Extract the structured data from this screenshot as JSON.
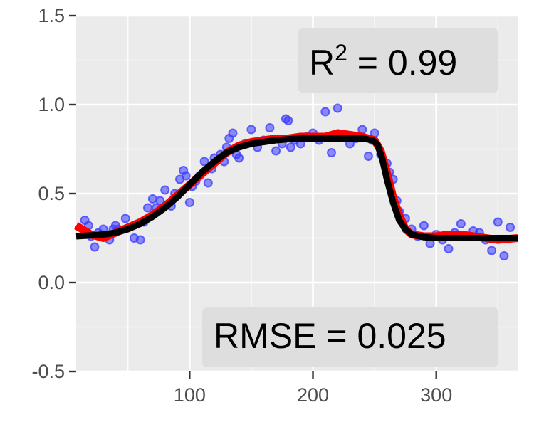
{
  "chart_data": {
    "type": "scatter",
    "title": "",
    "xlabel": "",
    "ylabel": "",
    "xlim": [
      8,
      366
    ],
    "ylim": [
      -0.5,
      1.5
    ],
    "x_ticks": [
      100,
      200,
      300
    ],
    "x_tick_labels": [
      "100",
      "200",
      "300"
    ],
    "y_ticks": [
      -0.5,
      0.0,
      0.5,
      1.0,
      1.5
    ],
    "y_tick_labels": [
      "-0.5",
      "0.0",
      "0.5",
      "1.0",
      "1.5"
    ],
    "grid": true,
    "annotations": {
      "r2_label": "R",
      "r2_superscript": "2",
      "r2_value": " = 0.99",
      "rmse": "RMSE = 0.025"
    },
    "colors": {
      "points": "#3b3bff",
      "smooth_line": "#ff0000",
      "fit_line": "#000000",
      "panel": "#ebebeb",
      "grid": "#ffffff"
    },
    "series": [
      {
        "kind": "points",
        "x": [
          15,
          18,
          20,
          23,
          26,
          30,
          35,
          38,
          40,
          42,
          48,
          55,
          60,
          63,
          66,
          70,
          73,
          76,
          80,
          85,
          88,
          92,
          95,
          97,
          100,
          102,
          105,
          108,
          112,
          115,
          118,
          120,
          125,
          128,
          130,
          132,
          135,
          138,
          140,
          145,
          150,
          155,
          160,
          165,
          170,
          175,
          178,
          180,
          182,
          185,
          190,
          195,
          200,
          205,
          210,
          215,
          220,
          225,
          230,
          235,
          240,
          245,
          248,
          250,
          255,
          260,
          262,
          265,
          268,
          270,
          275,
          280,
          285,
          290,
          295,
          300,
          305,
          310,
          315,
          320,
          325,
          330,
          335,
          340,
          345,
          350,
          355,
          360
        ],
        "y": [
          0.35,
          0.32,
          0.26,
          0.2,
          0.28,
          0.3,
          0.24,
          0.3,
          0.32,
          0.3,
          0.36,
          0.25,
          0.24,
          0.34,
          0.42,
          0.47,
          0.42,
          0.46,
          0.52,
          0.43,
          0.5,
          0.58,
          0.63,
          0.6,
          0.45,
          0.54,
          0.57,
          0.6,
          0.68,
          0.56,
          0.64,
          0.7,
          0.72,
          0.68,
          0.76,
          0.81,
          0.84,
          0.72,
          0.7,
          0.78,
          0.86,
          0.76,
          0.8,
          0.87,
          0.74,
          0.78,
          0.92,
          0.91,
          0.76,
          0.8,
          0.78,
          0.82,
          0.84,
          0.8,
          0.96,
          0.73,
          0.98,
          0.82,
          0.78,
          0.81,
          0.86,
          0.71,
          0.8,
          0.84,
          0.72,
          0.67,
          0.62,
          0.58,
          0.46,
          0.4,
          0.36,
          0.3,
          0.26,
          0.32,
          0.22,
          0.27,
          0.24,
          0.19,
          0.28,
          0.33,
          0.26,
          0.29,
          0.28,
          0.24,
          0.18,
          0.34,
          0.15,
          0.31
        ]
      },
      {
        "kind": "line",
        "x": [
          8,
          20,
          30,
          40,
          50,
          60,
          70,
          80,
          90,
          100,
          110,
          120,
          130,
          140,
          150,
          160,
          170,
          180,
          190,
          200,
          210,
          220,
          230,
          240,
          250,
          255,
          260,
          265,
          270,
          275,
          280,
          290,
          300,
          310,
          320,
          330,
          340,
          350,
          366
        ],
        "y": [
          0.32,
          0.27,
          0.25,
          0.28,
          0.31,
          0.34,
          0.38,
          0.43,
          0.49,
          0.55,
          0.61,
          0.67,
          0.73,
          0.77,
          0.79,
          0.8,
          0.81,
          0.81,
          0.82,
          0.82,
          0.82,
          0.84,
          0.83,
          0.82,
          0.8,
          0.74,
          0.62,
          0.48,
          0.38,
          0.3,
          0.27,
          0.26,
          0.26,
          0.27,
          0.27,
          0.26,
          0.25,
          0.24,
          0.25
        ]
      },
      {
        "kind": "line",
        "x": [
          8,
          20,
          30,
          40,
          50,
          60,
          70,
          80,
          90,
          100,
          110,
          120,
          130,
          140,
          150,
          160,
          170,
          180,
          190,
          200,
          210,
          220,
          230,
          240,
          248,
          252,
          256,
          260,
          265,
          270,
          275,
          280,
          290,
          300,
          310,
          320,
          330,
          340,
          350,
          366
        ],
        "y": [
          0.26,
          0.265,
          0.27,
          0.28,
          0.3,
          0.33,
          0.37,
          0.42,
          0.48,
          0.55,
          0.62,
          0.68,
          0.73,
          0.76,
          0.78,
          0.79,
          0.8,
          0.805,
          0.81,
          0.81,
          0.81,
          0.81,
          0.81,
          0.81,
          0.8,
          0.78,
          0.7,
          0.58,
          0.45,
          0.35,
          0.3,
          0.27,
          0.255,
          0.25,
          0.25,
          0.25,
          0.25,
          0.25,
          0.25,
          0.25
        ]
      }
    ]
  }
}
